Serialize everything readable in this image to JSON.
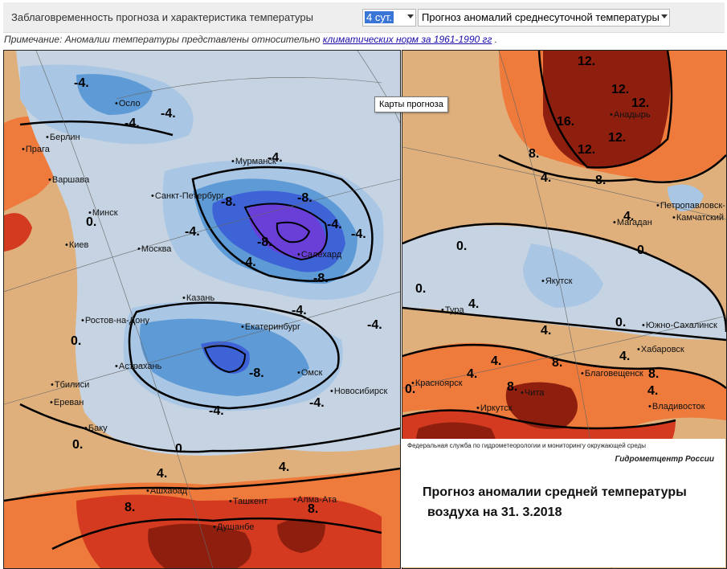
{
  "toolbar": {
    "lead_label": "Заблаговременность прогноза и характеристика температуры",
    "lead_select": "4 сут.",
    "type_select": "Прогноз аномалий среднесуточной температуры"
  },
  "note": {
    "prefix": "Примечание: Аномалии температуры представлены относительно",
    "link": "климатических норм за 1961-1990 гг",
    "suffix": "."
  },
  "tooltip": "Карты прогноза",
  "colors": {
    "anom_plus_16": "#8e1f0f",
    "anom_plus_8": "#d43a1f",
    "anom_plus_4": "#ee7a3c",
    "anom_plus_0": "#e0b07c",
    "anom_minus_0": "#c5d3e2",
    "anom_minus_4": "#a9c6e4",
    "anom_minus_8": "#5e9bd6",
    "anom_minus_12": "#3e63d7",
    "anom_minus_16": "#6a3fd8"
  },
  "left_map": {
    "cities": [
      "Осло",
      "Берлин",
      "Прага",
      "Варшава",
      "Минск",
      "Киев",
      "Мурманск",
      "Санкт-Петербург",
      "Москва",
      "Салехард",
      "Казань",
      "Ростов-на-Дону",
      "Екатеринбург",
      "Астрахань",
      "Омск",
      "Тбилиси",
      "Ереван",
      "Баку",
      "Новосибирск",
      "Ашхабад",
      "Ташкент",
      "Алма-Ата",
      "Душанбе"
    ],
    "isolines": [
      "-4.",
      "-4.",
      "-4.",
      "0.",
      "-4.",
      "-8.",
      "-8.",
      "-8.",
      "-4.",
      "-8.",
      "-4.",
      "-4.",
      "-4.",
      "-4.",
      "0.",
      "-8.",
      "-4.",
      "-4.",
      "0.",
      "0.",
      "4.",
      "4.",
      "8.",
      "8.",
      "-4."
    ]
  },
  "right_map": {
    "cities": [
      "Анадырь",
      "Петропавловск-",
      "Камчатский",
      "Магадан",
      "Якутск",
      "Тура",
      "Южно-Сахалинск",
      "Хабаровск",
      "Красноярск",
      "Благовещенск",
      "Чита",
      "Иркутск",
      "Владивосток"
    ],
    "isolines": [
      "12.",
      "12.",
      "12.",
      "16.",
      "12.",
      "12.",
      "8.",
      "4.",
      "8.",
      "0.",
      "4.",
      "0.",
      "0.",
      "0.",
      "4.",
      "4.",
      "4.",
      "0.",
      "4.",
      "8.",
      "8.",
      "8.",
      "4.",
      "4."
    ]
  },
  "caption": {
    "agency": "Федеральная служба по гидрометеорологии и мониторингу окружающей среды",
    "center": "Гидрометцентр России",
    "title_line1": "Прогноз аномалии средней температуры",
    "title_line2": "воздуха на    31. 3.2018"
  }
}
